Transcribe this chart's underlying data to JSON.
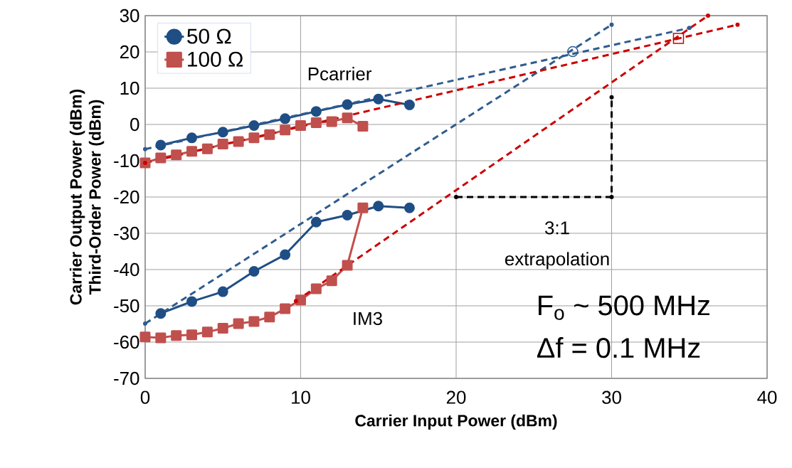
{
  "chart_data": {
    "type": "line",
    "xlabel": "Carrier Input Power (dBm)",
    "ylabel": "Carrier Output Power (dBm)",
    "xlim": [
      0,
      40
    ],
    "ylim": [
      -70,
      30
    ],
    "xticks": [
      0,
      10,
      20,
      30,
      40
    ],
    "yticks": [
      -70,
      -60,
      -50,
      -40,
      -30,
      -20,
      -10,
      0,
      10,
      20,
      30
    ],
    "grid": true,
    "legend": "top left",
    "annotations": [
      "Pcarrier",
      "IM3",
      "3:1 extrapolation",
      "F$_{o}$ ~ 500 MHz",
      "Δf = 0.1 MHz",
      "Third-Order Power (dBm)"
    ],
    "series": [
      {
        "name": "50 Ω",
        "color": "#1f4e85",
        "marker": "circle",
        "x": [
          1,
          3,
          5,
          7,
          9,
          11,
          13,
          15,
          17
        ],
        "values": [
          -5.7,
          -3.7,
          -2.1,
          -0.3,
          1.6,
          3.6,
          5.5,
          7.0,
          5.4
        ]
      },
      {
        "name": "100 Ω",
        "color": "#c0504d",
        "marker": "square",
        "x": [
          0,
          1,
          2,
          3,
          4,
          5,
          6,
          7,
          8,
          9,
          10,
          11,
          12,
          13,
          14
        ],
        "values": [
          -10.6,
          -9.2,
          -8.4,
          -7.4,
          -6.7,
          -5.4,
          -4.7,
          -3.7,
          -2.8,
          -1.5,
          -0.3,
          0.5,
          0.8,
          1.8,
          -0.5
        ]
      },
      {
        "color": "#1f4e85",
        "marker": "circle",
        "x": [
          1,
          3,
          5,
          7,
          9,
          11,
          13,
          15,
          17
        ],
        "values": [
          -52.1,
          -48.8,
          -46.1,
          -40.5,
          -35.9,
          -26.9,
          -25.0,
          -22.5,
          -23.0
        ]
      },
      {
        "color": "#c0504d",
        "marker": "square",
        "x": [
          0,
          1,
          2,
          3,
          4,
          5,
          6,
          7,
          8,
          9,
          10,
          11,
          12,
          13,
          14
        ],
        "values": [
          -58.6,
          -58.8,
          -58.2,
          -58.0,
          -57.2,
          -56.2,
          -54.9,
          -54.3,
          -53.1,
          -50.8,
          -48.4,
          -45.3,
          -43.1,
          -38.8,
          -23.0
        ]
      },
      {
        "color": "#2e5c8f",
        "marker": "none",
        "line_style": "dashed",
        "x": [
          0,
          35
        ],
        "values": [
          -6.8,
          26.6
        ]
      },
      {
        "color": "#2e5c8f",
        "marker": "none",
        "line_style": "dashed",
        "x": [
          0,
          30
        ],
        "values": [
          -54.9,
          27.5
        ]
      },
      {
        "color": "#cc0000",
        "marker": "none",
        "line_style": "dashed",
        "x": [
          0,
          38.1
        ],
        "values": [
          -10.6,
          27.5
        ]
      },
      {
        "color": "#cc0000",
        "marker": "none",
        "line_style": "dashed",
        "x": [
          9.7,
          36.2
        ],
        "values": [
          -48.7,
          30
        ]
      },
      {
        "type": "scatter",
        "color": "#2e5c8f",
        "marker": "circle",
        "x": [
          27.5
        ],
        "values": [
          20.1
        ]
      },
      {
        "type": "scatter",
        "color": "#cc0000",
        "marker": "square",
        "x": [
          34.3
        ],
        "values": [
          23.7
        ]
      },
      {
        "color": "#000000",
        "marker": "none",
        "line_style": "dashed",
        "x": [
          20,
          30,
          30
        ],
        "values": [
          -20,
          -20,
          7.5
        ]
      }
    ]
  }
}
